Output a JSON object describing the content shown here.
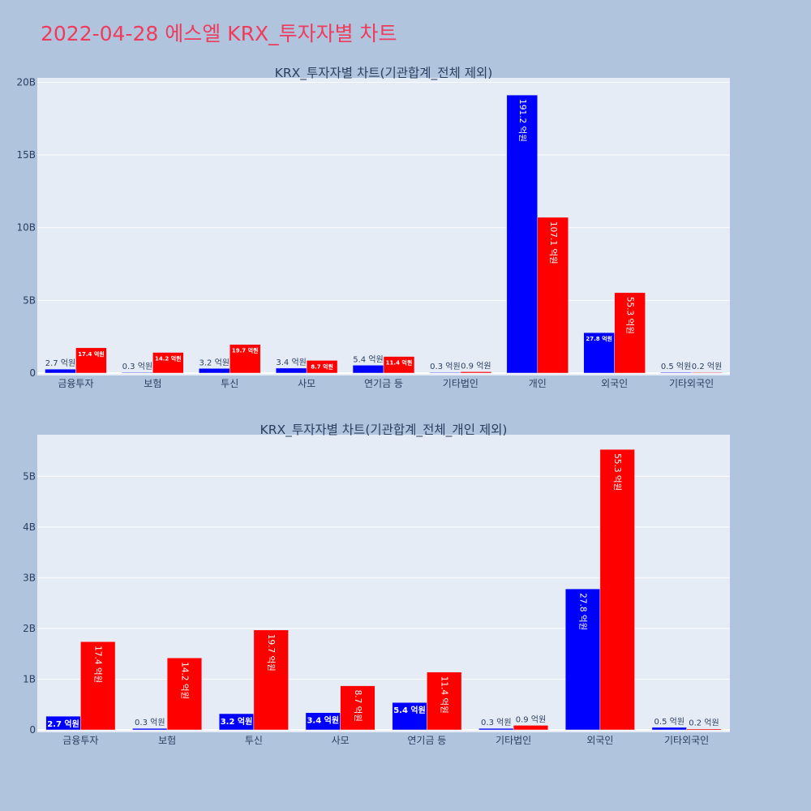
{
  "page": {
    "title": "2022-04-28 에스엘 KRX_투자자별 차트"
  },
  "colors": {
    "background": "#b0c4de",
    "plot_bg": "#e5ecf6",
    "buy": "#0000ff",
    "sell": "#ff0000",
    "title": "#ef3b5c"
  },
  "chart_data": [
    {
      "type": "bar",
      "title": "KRX_투자자별 차트(기관합계_전체 제외)",
      "xlabel": "",
      "ylabel": "",
      "categories": [
        "금융투자",
        "보험",
        "투신",
        "사모",
        "연기금 등",
        "기타법인",
        "개인",
        "외국인",
        "기타외국인"
      ],
      "ylim": [
        0,
        20.3
      ],
      "yticks": [
        0,
        5,
        10,
        15,
        20
      ],
      "ytick_labels": [
        "0",
        "5B",
        "10B",
        "15B",
        "20B"
      ],
      "grid": true,
      "series": [
        {
          "color": "#0000ff",
          "values": [
            0.27,
            0.03,
            0.32,
            0.34,
            0.54,
            0.03,
            19.12,
            2.78,
            0.05
          ],
          "labels": [
            "2.7 억원",
            "0.3 억원",
            "3.2 억원",
            "3.4 억원",
            "5.4 억원",
            "0.3 억원",
            "191.2 억원",
            "27.8 억원",
            "0.5 억원"
          ]
        },
        {
          "color": "#ff0000",
          "values": [
            1.74,
            1.42,
            1.97,
            0.87,
            1.14,
            0.09,
            10.71,
            5.53,
            0.02
          ],
          "labels": [
            "17.4 억원",
            "14.2 억원",
            "19.7 억원",
            "8.7 억원",
            "11.4 억원",
            "0.9 억원",
            "107.1 억원",
            "55.3 억원",
            "0.2 억원"
          ]
        }
      ]
    },
    {
      "type": "bar",
      "title": "KRX_투자자별 차트(기관합계_전체_개인 제외)",
      "xlabel": "",
      "ylabel": "",
      "categories": [
        "금융투자",
        "보험",
        "투신",
        "사모",
        "연기금 등",
        "기타법인",
        "외국인",
        "기타외국인"
      ],
      "ylim": [
        0,
        5.82
      ],
      "yticks": [
        0,
        1,
        2,
        3,
        4,
        5
      ],
      "ytick_labels": [
        "0",
        "1B",
        "2B",
        "3B",
        "4B",
        "5B"
      ],
      "grid": true,
      "series": [
        {
          "color": "#0000ff",
          "values": [
            0.27,
            0.03,
            0.32,
            0.34,
            0.54,
            0.03,
            2.78,
            0.05
          ],
          "labels": [
            "2.7 억원",
            "0.3 억원",
            "3.2 억원",
            "3.4 억원",
            "5.4 억원",
            "0.3 억원",
            "27.8 억원",
            "0.5 억원"
          ]
        },
        {
          "color": "#ff0000",
          "values": [
            1.74,
            1.42,
            1.97,
            0.87,
            1.14,
            0.09,
            5.53,
            0.02
          ],
          "labels": [
            "17.4 억원",
            "14.2 억원",
            "19.7 억원",
            "8.7 억원",
            "11.4 억원",
            "0.9 억원",
            "55.3 억원",
            "0.2 억원"
          ]
        }
      ]
    }
  ]
}
